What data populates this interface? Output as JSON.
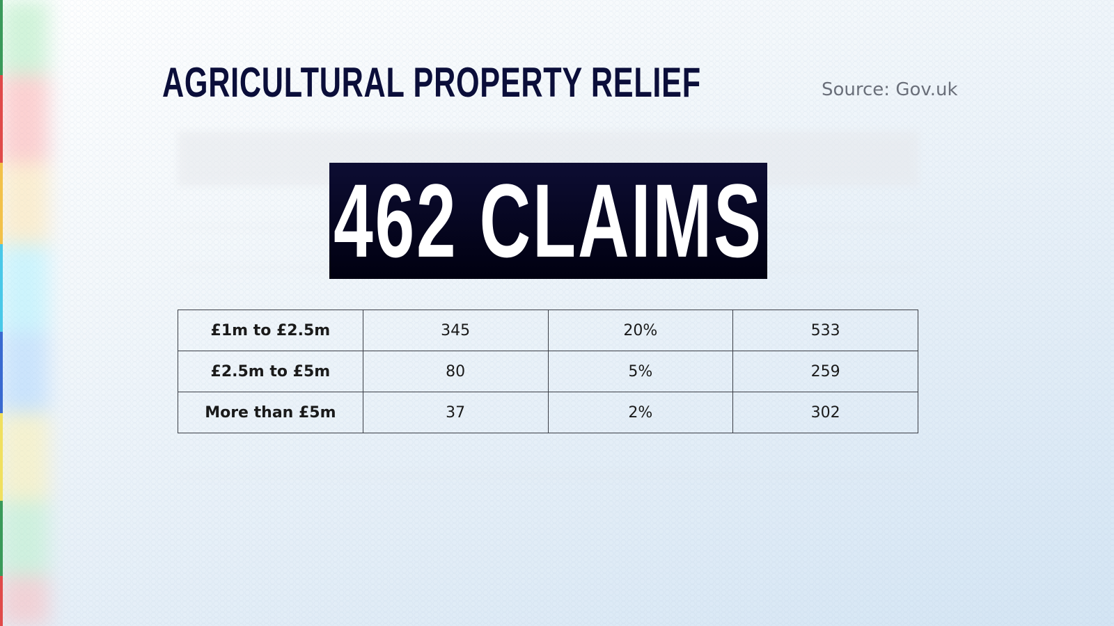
{
  "title": "AGRICULTURAL PROPERTY RELIEF",
  "source": "Source: Gov.uk",
  "highlight": "462 CLAIMS",
  "chart_data": {
    "type": "table",
    "rows": [
      [
        "£1m to £2.5m",
        "345",
        "20%",
        "533"
      ],
      [
        "£2.5m to £5m",
        "80",
        "5%",
        "259"
      ],
      [
        "More than £5m",
        "37",
        "2%",
        "302"
      ]
    ]
  },
  "colors": {
    "title": "#0b0e3a",
    "highlight_bg": "#05051e",
    "highlight_text": "#ffffff"
  }
}
